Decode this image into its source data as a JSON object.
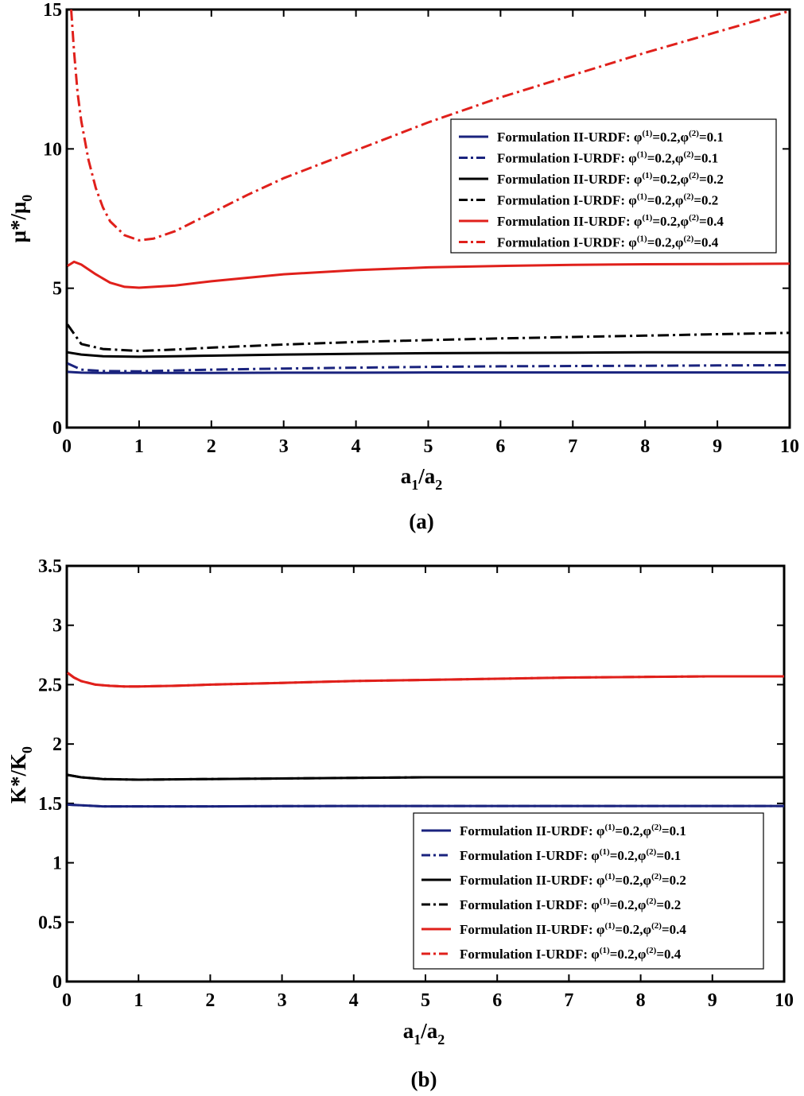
{
  "chart_data": [
    {
      "type": "line",
      "panel": "a",
      "caption": "(a)",
      "xlabel": {
        "main": "a",
        "sub1": "1",
        "slash": "/a",
        "sub2": "2"
      },
      "ylabel": {
        "main": "μ*/μ",
        "sub": "0"
      },
      "xlim": [
        0,
        10
      ],
      "ylim": [
        0,
        15
      ],
      "xticks": [
        0,
        1,
        2,
        3,
        4,
        5,
        6,
        7,
        8,
        9,
        10
      ],
      "yticks": [
        0,
        5,
        10,
        15
      ],
      "legend_position": "upper-right",
      "series": [
        {
          "name": "Formulation II-URDF",
          "phi1": "0.2",
          "phi2": "0.1",
          "color": "#1a237e",
          "dash": "solid",
          "x": [
            0.01,
            0.2,
            0.5,
            1,
            1.5,
            2,
            3,
            4,
            5,
            6,
            7,
            8,
            9,
            10
          ],
          "y": [
            2.0,
            1.97,
            1.96,
            1.96,
            1.96,
            1.96,
            1.97,
            1.97,
            1.98,
            1.98,
            1.98,
            1.98,
            1.98,
            1.98
          ]
        },
        {
          "name": "Formulation I-URDF",
          "phi1": "0.2",
          "phi2": "0.1",
          "color": "#1a237e",
          "dash": "dashdot",
          "x": [
            0.01,
            0.2,
            0.5,
            1,
            1.5,
            2,
            3,
            4,
            5,
            6,
            7,
            8,
            9,
            10
          ],
          "y": [
            2.3,
            2.08,
            2.03,
            2.02,
            2.05,
            2.08,
            2.12,
            2.15,
            2.18,
            2.2,
            2.21,
            2.22,
            2.23,
            2.24
          ]
        },
        {
          "name": "Formulation II-URDF",
          "phi1": "0.2",
          "phi2": "0.2",
          "color": "#000000",
          "dash": "solid",
          "x": [
            0.01,
            0.2,
            0.5,
            1,
            1.5,
            2,
            3,
            4,
            5,
            6,
            7,
            8,
            9,
            10
          ],
          "y": [
            2.7,
            2.62,
            2.56,
            2.54,
            2.56,
            2.58,
            2.62,
            2.65,
            2.67,
            2.68,
            2.69,
            2.7,
            2.7,
            2.7
          ]
        },
        {
          "name": "Formulation I-URDF",
          "phi1": "0.2",
          "phi2": "0.2",
          "color": "#000000",
          "dash": "dashdot",
          "x": [
            0.01,
            0.2,
            0.5,
            1,
            1.5,
            2,
            3,
            4,
            5,
            6,
            7,
            8,
            9,
            10
          ],
          "y": [
            3.7,
            3.0,
            2.82,
            2.75,
            2.8,
            2.87,
            2.98,
            3.07,
            3.14,
            3.2,
            3.25,
            3.3,
            3.35,
            3.4
          ]
        },
        {
          "name": "Formulation II-URDF",
          "phi1": "0.2",
          "phi2": "0.4",
          "color": "#e0201b",
          "dash": "solid",
          "x": [
            0.01,
            0.1,
            0.2,
            0.4,
            0.6,
            0.8,
            1,
            1.5,
            2,
            3,
            4,
            5,
            6,
            7,
            8,
            9,
            10
          ],
          "y": [
            5.8,
            5.95,
            5.85,
            5.5,
            5.2,
            5.05,
            5.02,
            5.1,
            5.25,
            5.5,
            5.65,
            5.75,
            5.8,
            5.84,
            5.86,
            5.87,
            5.88
          ]
        },
        {
          "name": "Formulation I-URDF",
          "phi1": "0.2",
          "phi2": "0.4",
          "color": "#e0201b",
          "dash": "dashdot",
          "x": [
            0.06,
            0.1,
            0.15,
            0.2,
            0.3,
            0.4,
            0.5,
            0.6,
            0.8,
            1,
            1.2,
            1.5,
            2,
            2.5,
            3,
            4,
            5,
            6,
            7,
            8,
            9,
            10
          ],
          "y": [
            15,
            13.5,
            12.0,
            11.0,
            9.6,
            8.6,
            7.9,
            7.4,
            6.9,
            6.72,
            6.78,
            7.05,
            7.7,
            8.35,
            8.95,
            9.95,
            10.95,
            11.85,
            12.65,
            13.45,
            14.2,
            14.95
          ]
        }
      ]
    },
    {
      "type": "line",
      "panel": "b",
      "caption": "(b)",
      "xlabel": {
        "main": "a",
        "sub1": "1",
        "slash": "/a",
        "sub2": "2"
      },
      "ylabel": {
        "main": "K*/K",
        "sub": "0"
      },
      "xlim": [
        0,
        10
      ],
      "ylim": [
        0,
        3.5
      ],
      "xticks": [
        0,
        1,
        2,
        3,
        4,
        5,
        6,
        7,
        8,
        9,
        10
      ],
      "yticks": [
        0,
        0.5,
        1,
        1.5,
        2,
        2.5,
        3,
        3.5
      ],
      "legend_position": "lower-right",
      "series": [
        {
          "name": "Formulation II-URDF",
          "phi1": "0.2",
          "phi2": "0.1",
          "color": "#1a237e",
          "dash": "solid",
          "x": [
            0.01,
            0.5,
            1,
            2,
            3,
            4,
            5,
            6,
            7,
            8,
            9,
            10
          ],
          "y": [
            1.49,
            1.475,
            1.475,
            1.475,
            1.477,
            1.478,
            1.478,
            1.478,
            1.478,
            1.478,
            1.478,
            1.478
          ]
        },
        {
          "name": "Formulation I-URDF",
          "phi1": "0.2",
          "phi2": "0.1",
          "color": "#1a237e",
          "dash": "dashdot",
          "x": [
            0.01,
            0.5,
            1,
            2,
            3,
            4,
            5,
            6,
            7,
            8,
            9,
            10
          ],
          "y": [
            1.49,
            1.475,
            1.475,
            1.475,
            1.477,
            1.478,
            1.478,
            1.478,
            1.478,
            1.478,
            1.478,
            1.478
          ]
        },
        {
          "name": "Formulation II-URDF",
          "phi1": "0.2",
          "phi2": "0.2",
          "color": "#000000",
          "dash": "solid",
          "x": [
            0.01,
            0.2,
            0.5,
            1,
            2,
            3,
            4,
            5,
            6,
            7,
            8,
            9,
            10
          ],
          "y": [
            1.74,
            1.72,
            1.705,
            1.7,
            1.705,
            1.71,
            1.715,
            1.72,
            1.72,
            1.72,
            1.72,
            1.72,
            1.72
          ]
        },
        {
          "name": "Formulation I-URDF",
          "phi1": "0.2",
          "phi2": "0.2",
          "color": "#000000",
          "dash": "dashdot",
          "x": [
            0.01,
            0.2,
            0.5,
            1,
            2,
            3,
            4,
            5,
            6,
            7,
            8,
            9,
            10
          ],
          "y": [
            1.74,
            1.72,
            1.705,
            1.7,
            1.705,
            1.71,
            1.715,
            1.72,
            1.72,
            1.72,
            1.72,
            1.72,
            1.72
          ]
        },
        {
          "name": "Formulation II-URDF",
          "phi1": "0.2",
          "phi2": "0.4",
          "color": "#e0201b",
          "dash": "solid",
          "x": [
            0.01,
            0.1,
            0.2,
            0.4,
            0.6,
            0.8,
            1,
            1.5,
            2,
            3,
            4,
            5,
            6,
            7,
            8,
            9,
            10
          ],
          "y": [
            2.6,
            2.56,
            2.53,
            2.5,
            2.49,
            2.485,
            2.485,
            2.49,
            2.5,
            2.515,
            2.53,
            2.54,
            2.55,
            2.56,
            2.565,
            2.57,
            2.57
          ]
        },
        {
          "name": "Formulation I-URDF",
          "phi1": "0.2",
          "phi2": "0.4",
          "color": "#e0201b",
          "dash": "dashdot",
          "x": [
            0.01,
            0.1,
            0.2,
            0.4,
            0.6,
            0.8,
            1,
            1.5,
            2,
            3,
            4,
            5,
            6,
            7,
            8,
            9,
            10
          ],
          "y": [
            2.6,
            2.56,
            2.53,
            2.5,
            2.49,
            2.485,
            2.485,
            2.49,
            2.5,
            2.515,
            2.53,
            2.54,
            2.55,
            2.56,
            2.565,
            2.57,
            2.57
          ]
        }
      ]
    }
  ],
  "legend_text": {
    "phi_symbol": "φ",
    "sup1": "(1)",
    "sup2": "(2)",
    "separator": ": ",
    "eq": "=",
    "comma": ","
  }
}
